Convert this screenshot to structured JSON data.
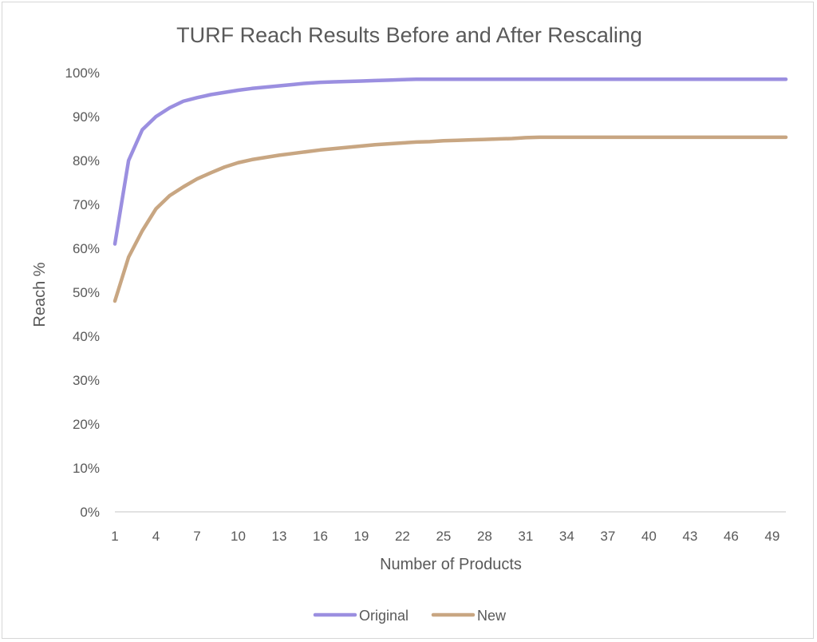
{
  "chart_data": {
    "type": "line",
    "title": "TURF Reach Results Before and After Rescaling",
    "xlabel": "Number of Products",
    "ylabel": "Reach %",
    "ylim": [
      0,
      1
    ],
    "y_ticks": [
      "0%",
      "10%",
      "20%",
      "30%",
      "40%",
      "50%",
      "60%",
      "70%",
      "80%",
      "90%",
      "100%"
    ],
    "x_tick_labels": [
      "1",
      "4",
      "7",
      "10",
      "13",
      "16",
      "19",
      "22",
      "25",
      "28",
      "31",
      "34",
      "37",
      "40",
      "43",
      "46",
      "49"
    ],
    "grid": false,
    "legend_position": "bottom",
    "x": [
      1,
      2,
      3,
      4,
      5,
      6,
      7,
      8,
      9,
      10,
      11,
      12,
      13,
      14,
      15,
      16,
      17,
      18,
      19,
      20,
      21,
      22,
      23,
      24,
      25,
      26,
      27,
      28,
      29,
      30,
      31,
      32,
      33,
      34,
      35,
      36,
      37,
      38,
      39,
      40,
      41,
      42,
      43,
      44,
      45,
      46,
      47,
      48,
      49,
      50
    ],
    "series": [
      {
        "name": "Original",
        "color": "#9b8fe0",
        "values": [
          0.61,
          0.8,
          0.87,
          0.9,
          0.92,
          0.935,
          0.943,
          0.95,
          0.955,
          0.96,
          0.964,
          0.967,
          0.97,
          0.973,
          0.976,
          0.978,
          0.979,
          0.98,
          0.981,
          0.982,
          0.983,
          0.984,
          0.985,
          0.985,
          0.985,
          0.985,
          0.985,
          0.985,
          0.985,
          0.985,
          0.985,
          0.985,
          0.985,
          0.985,
          0.985,
          0.985,
          0.985,
          0.985,
          0.985,
          0.985,
          0.985,
          0.985,
          0.985,
          0.985,
          0.985,
          0.985,
          0.985,
          0.985,
          0.985,
          0.985
        ]
      },
      {
        "name": "New",
        "color": "#c8a682",
        "values": [
          0.48,
          0.58,
          0.64,
          0.69,
          0.72,
          0.74,
          0.758,
          0.772,
          0.785,
          0.795,
          0.802,
          0.807,
          0.812,
          0.816,
          0.82,
          0.824,
          0.827,
          0.83,
          0.833,
          0.836,
          0.838,
          0.84,
          0.842,
          0.843,
          0.845,
          0.846,
          0.847,
          0.848,
          0.849,
          0.85,
          0.852,
          0.853,
          0.853,
          0.853,
          0.853,
          0.853,
          0.853,
          0.853,
          0.853,
          0.853,
          0.853,
          0.853,
          0.853,
          0.853,
          0.853,
          0.853,
          0.853,
          0.853,
          0.853,
          0.853
        ]
      }
    ]
  }
}
